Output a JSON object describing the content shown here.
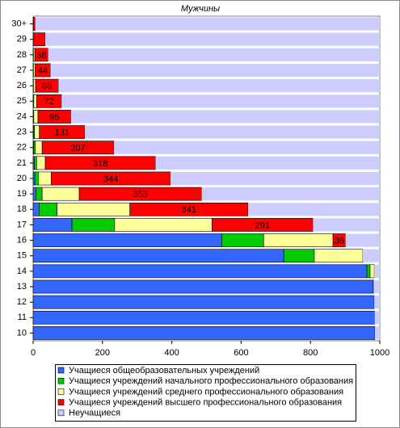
{
  "chart_data": {
    "type": "stacked-barh",
    "title": "Мужчины",
    "categories": [
      "30+",
      "29",
      "28",
      "27",
      "26",
      "25",
      "24",
      "23",
      "22",
      "21",
      "20",
      "19",
      "18",
      "17",
      "16",
      "15",
      "14",
      "13",
      "12",
      "11",
      "10"
    ],
    "series": [
      {
        "name": "Учащиеся общеобразовательных учреждений",
        "color": "#3366ff",
        "values": [
          0,
          0,
          0,
          0,
          0,
          0,
          0,
          1,
          2,
          4,
          5,
          8,
          17,
          112,
          544,
          723,
          963,
          981,
          984,
          985,
          986
        ]
      },
      {
        "name": "Учащиеся учреждений начального профессионального образования",
        "color": "#00cc00",
        "values": [
          0,
          0,
          1,
          1,
          1,
          2,
          2,
          3,
          4,
          6,
          10,
          18,
          52,
          123,
          121,
          88,
          9,
          1,
          0,
          0,
          0
        ]
      },
      {
        "name": "Учащиеся учреждений среднего профессионального образования",
        "color": "#ffff99",
        "values": [
          1,
          2,
          4,
          5,
          6,
          8,
          12,
          14,
          20,
          25,
          37,
          107,
          210,
          281,
          200,
          140,
          12,
          0,
          0,
          0,
          0
        ]
      },
      {
        "name": "Учащиеся учреждений высшего профессионального образования",
        "color": "#ff0000",
        "values": [
          5,
          33,
          38,
          44,
          66,
          72,
          95,
          131,
          207,
          318,
          344,
          353,
          341,
          291,
          36,
          0,
          0,
          0,
          0,
          0,
          0
        ],
        "value_labels": [
          null,
          null,
          38,
          44,
          66,
          72,
          95,
          131,
          207,
          318,
          344,
          353,
          341,
          291,
          36,
          null,
          null,
          null,
          null,
          null,
          null
        ]
      },
      {
        "name": "Неучащиеся",
        "color": "#ccccff",
        "values": [
          994,
          965,
          957,
          950,
          927,
          918,
          891,
          851,
          767,
          647,
          604,
          514,
          380,
          193,
          99,
          49,
          16,
          18,
          16,
          15,
          14
        ]
      }
    ],
    "xlim": [
      0,
      1000
    ],
    "xticks": [
      0,
      200,
      400,
      600,
      800,
      1000
    ]
  }
}
